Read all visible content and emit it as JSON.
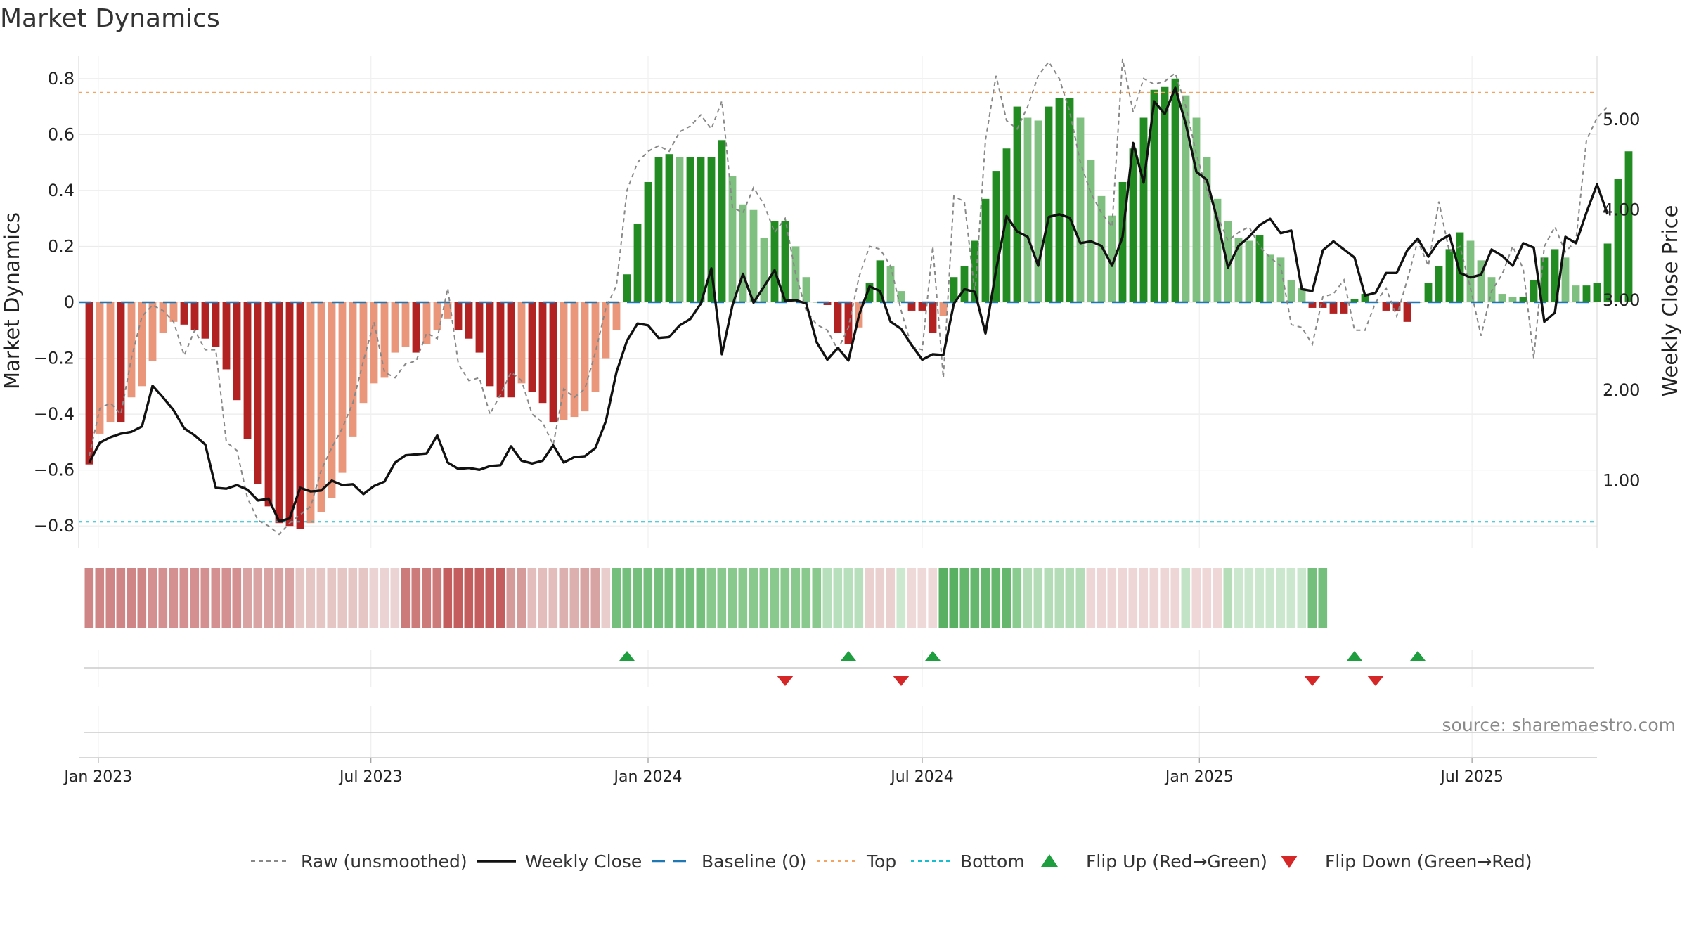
{
  "chart_data": {
    "type": "bar",
    "title": "Market Dynamics",
    "ylabel_left": "Market Dynamics",
    "ylabel_right": "Weekly Close Price",
    "ylim_left": [
      -0.88,
      0.88
    ],
    "ylim_right": [
      0.25,
      5.7
    ],
    "yticks_left": [
      "0.8",
      "0.6",
      "0.4",
      "0.2",
      "0",
      "−0.2",
      "−0.4",
      "−0.6",
      "−0.8"
    ],
    "yticks_right": [
      "5.00",
      "4.00",
      "3.00",
      "2.00",
      "1.00"
    ],
    "x_start": "2022-12-19",
    "x_end": "2025-09-22",
    "x_ticks": [
      {
        "date": "2023-01-01",
        "label": "Jan 2023"
      },
      {
        "date": "2023-07-01",
        "label": "Jul 2023"
      },
      {
        "date": "2024-01-01",
        "label": "Jan 2024"
      },
      {
        "date": "2024-07-01",
        "label": "Jul 2024"
      },
      {
        "date": "2025-01-01",
        "label": "Jan 2025"
      },
      {
        "date": "2025-07-01",
        "label": "Jul 2025"
      }
    ],
    "first_bar_date": "2022-12-26",
    "bar_interval_days": 7,
    "bar_values": [
      -0.58,
      -0.47,
      -0.43,
      -0.43,
      -0.34,
      -0.3,
      -0.21,
      -0.11,
      -0.07,
      -0.08,
      -0.1,
      -0.13,
      -0.16,
      -0.24,
      -0.35,
      -0.49,
      -0.65,
      -0.73,
      -0.79,
      -0.8,
      -0.81,
      -0.79,
      -0.75,
      -0.7,
      -0.61,
      -0.48,
      -0.36,
      -0.29,
      -0.27,
      -0.18,
      -0.16,
      -0.18,
      -0.15,
      -0.1,
      -0.06,
      -0.1,
      -0.13,
      -0.18,
      -0.3,
      -0.34,
      -0.34,
      -0.29,
      -0.32,
      -0.36,
      -0.43,
      -0.42,
      -0.41,
      -0.39,
      -0.32,
      -0.2,
      -0.1,
      0.1,
      0.28,
      0.43,
      0.52,
      0.53,
      0.52,
      0.52,
      0.52,
      0.52,
      0.58,
      0.45,
      0.35,
      0.33,
      0.23,
      0.29,
      0.29,
      0.2,
      0.09,
      0.0,
      -0.01,
      -0.11,
      -0.15,
      -0.09,
      0.07,
      0.15,
      0.13,
      0.04,
      -0.03,
      -0.03,
      -0.11,
      -0.05,
      0.09,
      0.13,
      0.22,
      0.37,
      0.47,
      0.55,
      0.7,
      0.66,
      0.65,
      0.7,
      0.73,
      0.73,
      0.66,
      0.51,
      0.38,
      0.31,
      0.43,
      0.55,
      0.66,
      0.76,
      0.77,
      0.8,
      0.74,
      0.66,
      0.52,
      0.37,
      0.29,
      0.23,
      0.22,
      0.24,
      0.17,
      0.16,
      0.08,
      0.05,
      -0.02,
      -0.02,
      -0.04,
      -0.04,
      0.01,
      0.03,
      0.0,
      -0.03,
      -0.03,
      -0.07,
      0.0,
      0.07,
      0.13,
      0.19,
      0.25,
      0.22,
      0.15,
      0.09,
      0.03,
      0.02,
      0.02,
      0.08,
      0.16,
      0.19,
      0.16,
      0.06,
      0.06,
      0.07,
      0.21,
      0.44,
      0.54
    ],
    "raw_values": [
      -0.55,
      -0.38,
      -0.36,
      -0.4,
      -0.2,
      -0.05,
      -0.01,
      -0.03,
      -0.07,
      -0.19,
      -0.1,
      -0.17,
      -0.17,
      -0.5,
      -0.53,
      -0.7,
      -0.78,
      -0.8,
      -0.83,
      -0.79,
      -0.76,
      -0.73,
      -0.6,
      -0.52,
      -0.45,
      -0.36,
      -0.21,
      -0.07,
      -0.25,
      -0.27,
      -0.22,
      -0.21,
      -0.11,
      -0.13,
      0.05,
      -0.22,
      -0.28,
      -0.27,
      -0.4,
      -0.33,
      -0.25,
      -0.28,
      -0.4,
      -0.43,
      -0.51,
      -0.31,
      -0.34,
      -0.31,
      -0.18,
      -0.02,
      0.06,
      0.4,
      0.5,
      0.54,
      0.56,
      0.54,
      0.61,
      0.63,
      0.67,
      0.62,
      0.72,
      0.34,
      0.32,
      0.41,
      0.35,
      0.25,
      0.3,
      0.1,
      -0.03,
      -0.08,
      -0.1,
      -0.17,
      -0.09,
      0.09,
      0.2,
      0.19,
      0.13,
      -0.03,
      -0.16,
      -0.17,
      0.2,
      -0.27,
      0.38,
      0.36,
      0.03,
      0.58,
      0.81,
      0.65,
      0.62,
      0.7,
      0.81,
      0.86,
      0.8,
      0.68,
      0.5,
      0.39,
      0.32,
      0.27,
      0.87,
      0.68,
      0.8,
      0.78,
      0.79,
      0.82,
      0.7,
      0.53,
      0.4,
      0.31,
      0.22,
      0.25,
      0.27,
      0.2,
      0.16,
      0.13,
      -0.08,
      -0.09,
      -0.15,
      0.02,
      0.03,
      0.08,
      -0.1,
      -0.1,
      0.0,
      0.05,
      -0.05,
      0.08,
      0.22,
      0.13,
      0.36,
      0.18,
      0.2,
      0.05,
      -0.12,
      0.04,
      0.1,
      0.2,
      0.12,
      -0.2,
      0.2,
      0.27,
      0.18,
      0.22,
      0.58,
      0.66,
      0.7
    ],
    "close_values": [
      1.2,
      1.42,
      1.48,
      1.52,
      1.54,
      1.6,
      2.05,
      1.92,
      1.78,
      1.58,
      1.5,
      1.4,
      0.92,
      0.91,
      0.95,
      0.9,
      0.78,
      0.8,
      0.55,
      0.58,
      0.92,
      0.88,
      0.89,
      1.0,
      0.95,
      0.96,
      0.85,
      0.94,
      0.99,
      1.2,
      1.28,
      1.29,
      1.3,
      1.5,
      1.2,
      1.13,
      1.14,
      1.12,
      1.16,
      1.17,
      1.38,
      1.22,
      1.19,
      1.22,
      1.39,
      1.2,
      1.26,
      1.27,
      1.36,
      1.66,
      2.2,
      2.55,
      2.74,
      2.72,
      2.58,
      2.59,
      2.72,
      2.79,
      2.96,
      3.35,
      2.4,
      2.94,
      3.29,
      2.97,
      3.15,
      3.33,
      2.99,
      3.0,
      2.96,
      2.53,
      2.34,
      2.47,
      2.33,
      2.83,
      3.15,
      3.1,
      2.76,
      2.68,
      2.5,
      2.34,
      2.4,
      2.39,
      2.96,
      3.12,
      3.09,
      2.63,
      3.33,
      3.93,
      3.76,
      3.7,
      3.38,
      3.92,
      3.95,
      3.91,
      3.63,
      3.65,
      3.6,
      3.38,
      3.7,
      4.74,
      4.3,
      5.2,
      5.06,
      5.35,
      4.95,
      4.42,
      4.33,
      3.88,
      3.36,
      3.6,
      3.7,
      3.83,
      3.9,
      3.74,
      3.77,
      3.12,
      3.1,
      3.55,
      3.65,
      3.56,
      3.47,
      3.05,
      3.08,
      3.3,
      3.3,
      3.55,
      3.68,
      3.48,
      3.65,
      3.72,
      3.3,
      3.25,
      3.28,
      3.56,
      3.49,
      3.38,
      3.63,
      3.58,
      2.76,
      2.86,
      3.7,
      3.63,
      3.97,
      4.28,
      3.95
    ]
  },
  "tiles": {
    "colors": [
      "#cf8585",
      "#d49090",
      "#d9a3a3",
      "#e6c5c5",
      "#ebd3d3",
      "#cc7a7a",
      "#c45e5e",
      "#d59b9b",
      "#e3bcbc",
      "#ddb0b0",
      "#d8a3a3",
      "#e9cdcd",
      "#74bf7c",
      "#89c98e",
      "#b8dfbb",
      "#ebd0d0",
      "#cce8cf",
      "#efd8d8",
      "#59b062",
      "#66b76e",
      "#8acb90",
      "#b4dcb7",
      "#efd6d6",
      "#c3e3c6",
      "#efd7d7",
      "#b5ddb8",
      "#cbe8ce",
      "#74bf7c"
    ],
    "run_lengths": [
      6,
      9,
      5,
      7,
      3,
      4,
      6,
      2,
      3,
      2,
      2,
      1,
      9,
      11,
      4,
      3,
      1,
      3,
      2,
      5,
      1,
      6,
      9,
      1,
      3,
      1,
      7,
      2
    ]
  },
  "flip_up_dates": [
    "2023-12-18",
    "2024-05-13",
    "2024-07-08",
    "2025-04-14",
    "2025-05-26"
  ],
  "flip_down_dates": [
    "2024-04-01",
    "2024-06-17",
    "2025-03-17",
    "2025-04-28"
  ],
  "levels": {
    "top": 0.75,
    "bottom": -0.785,
    "baseline": 0
  },
  "colors": {
    "green_dark": "#228b22",
    "green_light": "#7fbf7f",
    "red_dark": "#b22222",
    "red_light": "#e9967a",
    "close_line": "#111111",
    "raw_line": "#888888",
    "baseline": "#1f77b4",
    "top": "#f4a460",
    "bottom": "#17becf",
    "flip_up": "#1e9e3e",
    "flip_down": "#d62728"
  },
  "legend": [
    {
      "label": "Raw (unsmoothed)",
      "kind": "raw"
    },
    {
      "label": "Weekly Close",
      "kind": "close"
    },
    {
      "label": "Baseline (0)",
      "kind": "baseline"
    },
    {
      "label": "Top",
      "kind": "top"
    },
    {
      "label": "Bottom",
      "kind": "bottom"
    },
    {
      "label": "Flip Up (Red→Green)",
      "kind": "up"
    },
    {
      "label": "Flip Down (Green→Red)",
      "kind": "down"
    }
  ],
  "source": "source: sharemaestro.com"
}
